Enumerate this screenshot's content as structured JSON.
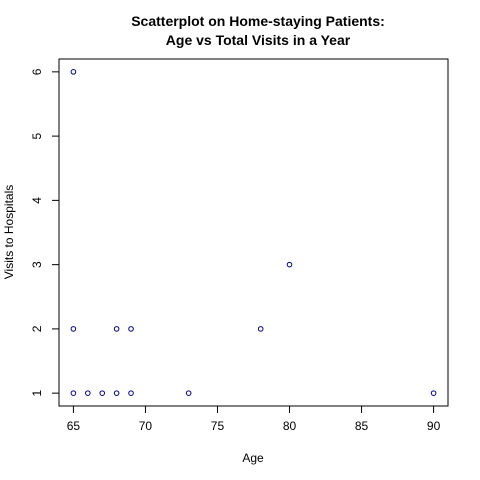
{
  "chart_data": {
    "type": "scatter",
    "title_line1": "Scatterplot on Home-staying Patients:",
    "title_line2": "Age vs Total Visits in a Year",
    "xlabel": "Age",
    "ylabel": "Visits to Hospitals",
    "xlim": [
      64,
      91
    ],
    "ylim": [
      0.8,
      6.2
    ],
    "xticks": [
      65,
      70,
      75,
      80,
      85,
      90
    ],
    "yticks": [
      1,
      2,
      3,
      4,
      5,
      6
    ],
    "grid": false,
    "marker_color": "#00008b",
    "points": [
      {
        "x": 65,
        "y": 6
      },
      {
        "x": 65,
        "y": 2
      },
      {
        "x": 65,
        "y": 1
      },
      {
        "x": 66,
        "y": 1
      },
      {
        "x": 67,
        "y": 1
      },
      {
        "x": 68,
        "y": 1
      },
      {
        "x": 68,
        "y": 2
      },
      {
        "x": 69,
        "y": 2
      },
      {
        "x": 69,
        "y": 1
      },
      {
        "x": 73,
        "y": 1
      },
      {
        "x": 78,
        "y": 2
      },
      {
        "x": 80,
        "y": 3
      },
      {
        "x": 90,
        "y": 1
      }
    ]
  }
}
